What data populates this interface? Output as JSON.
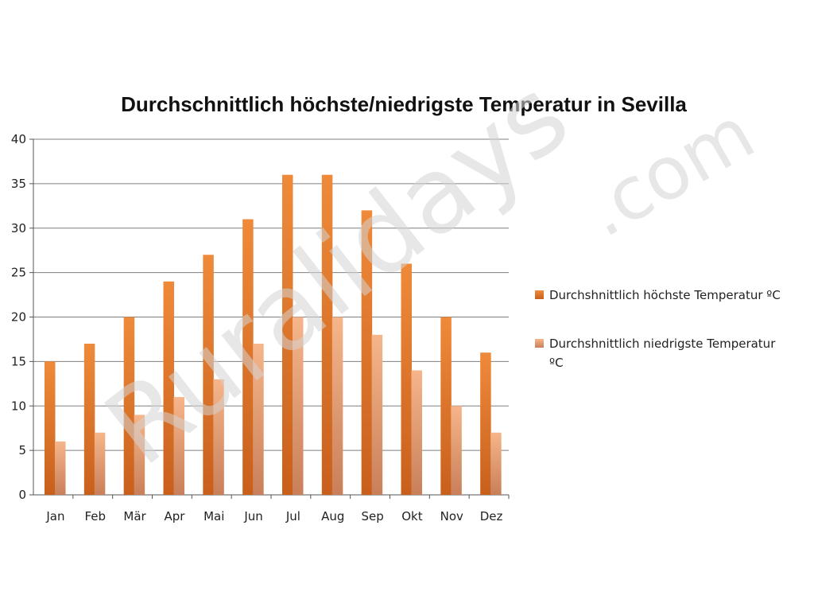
{
  "chart_data": {
    "type": "bar",
    "title": "Durchschnittlich höchste/niedrigste Temperatur in Sevilla",
    "xlabel": "",
    "ylabel": "",
    "categories": [
      "Jan",
      "Feb",
      "Mär",
      "Apr",
      "Mai",
      "Jun",
      "Jul",
      "Aug",
      "Sep",
      "Okt",
      "Nov",
      "Dez"
    ],
    "series": [
      {
        "name": "Durchshnittlich höchste Temperatur ºC",
        "values": [
          15,
          17,
          20,
          24,
          27,
          31,
          36,
          36,
          32,
          26,
          20,
          16
        ],
        "color": "#e8782a"
      },
      {
        "name_lines": [
          "Durchshnittlich niedrigste Temperatur",
          "ºC"
        ],
        "values": [
          6,
          7,
          9,
          11,
          13,
          17,
          20,
          20,
          18,
          14,
          10,
          7
        ],
        "color": "#f2a878"
      }
    ],
    "ylim": [
      0,
      40
    ],
    "yticks": [
      0,
      5,
      10,
      15,
      20,
      25,
      30,
      35,
      40
    ],
    "grid": true,
    "legend_position": "right"
  },
  "watermark": {
    "main": "Ruralidays",
    "suffix": ".com"
  }
}
